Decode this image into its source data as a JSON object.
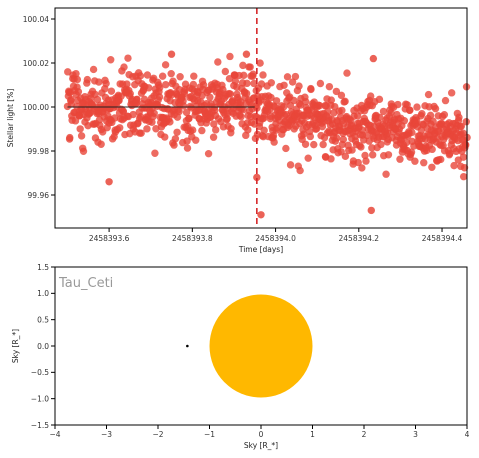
{
  "chart_data": [
    {
      "type": "scatter",
      "xlabel": "Time [days]",
      "ylabel": "Stellar light [%]",
      "xlim": [
        2458393.47,
        2458394.46
      ],
      "ylim": [
        99.945,
        100.045
      ],
      "xticks": [
        2458393.6,
        2458393.8,
        2458394.0,
        2458394.2,
        2458394.4
      ],
      "xtick_labels": [
        "2458393.6",
        "2458393.8",
        "2458394.0",
        "2458394.2",
        "2458394.4"
      ],
      "yticks": [
        99.96,
        99.98,
        100.0,
        100.02,
        100.04
      ],
      "ytick_labels": [
        "99.96",
        "99.98",
        "100.00",
        "100.02",
        "100.04"
      ],
      "marker_color": "#e8463a",
      "model_line": {
        "x": [
          2458393.5,
          2458393.95
        ],
        "y": [
          100.0,
          100.0
        ],
        "color": "#222222"
      },
      "vline": {
        "x": 2458393.955,
        "color": "#d62728",
        "style": "dashed"
      },
      "point_count": 1000,
      "trend": [
        {
          "x": 2458393.5,
          "y": 100.0
        },
        {
          "x": 2458393.955,
          "y": 100.002
        },
        {
          "x": 2458394.0,
          "y": 99.998
        },
        {
          "x": 2458394.2,
          "y": 99.99
        },
        {
          "x": 2458394.46,
          "y": 99.987
        }
      ],
      "scatter_sd": 0.0075,
      "outliers": [
        {
          "x": 2458393.6,
          "y": 99.966
        },
        {
          "x": 2458393.955,
          "y": 99.968
        },
        {
          "x": 2458393.965,
          "y": 99.951
        },
        {
          "x": 2458394.23,
          "y": 99.953
        },
        {
          "x": 2458394.235,
          "y": 100.022
        },
        {
          "x": 2458393.93,
          "y": 100.024
        },
        {
          "x": 2458393.75,
          "y": 100.024
        }
      ]
    },
    {
      "type": "scatter",
      "title": "Tau_Ceti",
      "xlabel": "Sky [R_*]",
      "ylabel": "Sky [R_*]",
      "xlim": [
        -4,
        4
      ],
      "ylim": [
        -1.5,
        1.5
      ],
      "xticks": [
        -4,
        -3,
        -2,
        -1,
        0,
        1,
        2,
        3,
        4
      ],
      "xtick_labels": [
        "−4",
        "−3",
        "−2",
        "−1",
        "0",
        "1",
        "2",
        "3",
        "4"
      ],
      "yticks": [
        -1.5,
        -1.0,
        -0.5,
        0.0,
        0.5,
        1.0,
        1.5
      ],
      "ytick_labels": [
        "−1.5",
        "−1.0",
        "−0.5",
        "0.0",
        "0.5",
        "1.0",
        "1.5"
      ],
      "star": {
        "x": 0.0,
        "y": 0.0,
        "radius": 1.0,
        "color": "#ffb800"
      },
      "planet": {
        "x": -1.43,
        "y": 0.0,
        "color": "#000000"
      }
    }
  ]
}
